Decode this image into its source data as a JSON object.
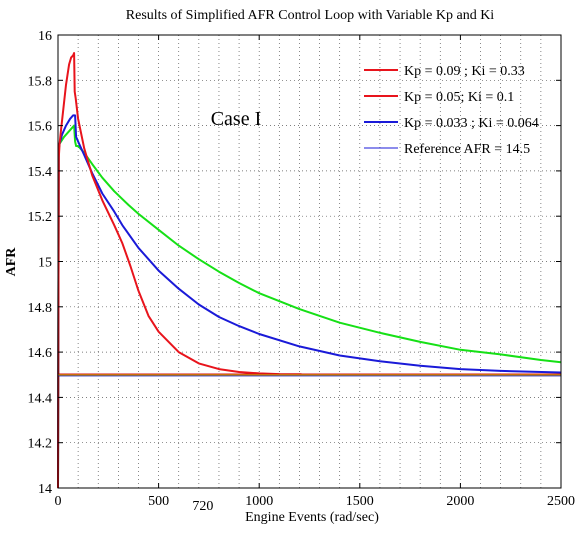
{
  "chart_data": {
    "type": "line",
    "title": "Results of Simplified AFR Control Loop with Variable Kp and Ki",
    "xlabel": "Engine Events (rad/sec)",
    "ylabel": "AFR",
    "xlim": [
      0,
      2500
    ],
    "ylim": [
      14,
      16
    ],
    "xticks": [
      0,
      500,
      1000,
      1500,
      2000,
      2500
    ],
    "xtick_labels": [
      "0",
      "500",
      "1000",
      "1500",
      "2000",
      "2500"
    ],
    "extra_xtick": {
      "value": 720,
      "label": "720"
    },
    "yticks": [
      14,
      14.2,
      14.4,
      14.6,
      14.8,
      15,
      15.2,
      15.4,
      15.6,
      15.8,
      16
    ],
    "ytick_labels": [
      "14",
      "14.2",
      "14.4",
      "14.6",
      "14.8",
      "15",
      "15.2",
      "15.4",
      "15.6",
      "15.8",
      "16"
    ],
    "grid": true,
    "legend_position": "top-right",
    "annotation": "Case I",
    "series": [
      {
        "name": "Kp = 0.09 ; Ki = 0.33",
        "color": "#e8141c",
        "x": [
          0,
          4,
          8,
          15,
          25,
          40,
          55,
          65,
          75,
          80,
          83,
          88,
          100,
          130,
          170,
          220,
          280,
          320,
          360,
          400,
          450,
          500,
          600,
          700,
          800,
          900,
          1000,
          1100,
          1200,
          1210
        ],
        "y": [
          14,
          15.46,
          15.52,
          15.58,
          15.66,
          15.78,
          15.87,
          15.9,
          15.91,
          15.92,
          15.75,
          15.72,
          15.63,
          15.5,
          15.38,
          15.27,
          15.16,
          15.08,
          14.98,
          14.87,
          14.76,
          14.69,
          14.6,
          14.55,
          14.525,
          14.512,
          14.506,
          14.503,
          14.502,
          14.502
        ]
      },
      {
        "name": "Kp = 0.05; Ki = 0.1",
        "color": "#e8141c",
        "x": [
          0,
          2500
        ],
        "y": [
          14.5,
          14.5
        ]
      },
      {
        "name": "Kp = 0.033 ; Ki = 0.064",
        "color": "#1a1ad8",
        "x": [
          0,
          4,
          8,
          20,
          40,
          60,
          75,
          85,
          90,
          95,
          100,
          130,
          170,
          220,
          280,
          320,
          400,
          500,
          600,
          700,
          800,
          900,
          1000,
          1200,
          1400,
          1600,
          1800,
          2000,
          2200,
          2500
        ],
        "y": [
          14,
          15.5,
          15.52,
          15.56,
          15.6,
          15.63,
          15.645,
          15.645,
          15.55,
          15.54,
          15.53,
          15.47,
          15.39,
          15.3,
          15.22,
          15.16,
          15.06,
          14.96,
          14.88,
          14.81,
          14.755,
          14.715,
          14.68,
          14.625,
          14.585,
          14.56,
          14.54,
          14.525,
          14.517,
          14.51
        ]
      },
      {
        "name": "Kp = 0.033 ; Ki = 0.064 (green)",
        "color": "#16e016",
        "x": [
          0,
          4,
          8,
          30,
          60,
          80,
          85,
          90,
          100,
          130,
          170,
          220,
          280,
          350,
          400,
          500,
          600,
          700,
          800,
          900,
          1000,
          1200,
          1400,
          1600,
          1800,
          2000,
          2200,
          2400,
          2500
        ],
        "y": [
          14,
          15.5,
          15.52,
          15.55,
          15.58,
          15.6,
          15.53,
          15.51,
          15.51,
          15.48,
          15.43,
          15.37,
          15.31,
          15.25,
          15.21,
          15.14,
          15.07,
          15.01,
          14.955,
          14.905,
          14.86,
          14.79,
          14.73,
          14.685,
          14.645,
          14.61,
          14.59,
          14.565,
          14.555
        ]
      },
      {
        "name": "Reference AFR = 14.5",
        "color": "#1a1ad8",
        "x": [
          0,
          2500
        ],
        "y": [
          14.5,
          14.5
        ]
      }
    ]
  },
  "legend_items": [
    {
      "label": "Kp = 0.09 ; Ki = 0.33",
      "color": "#e8141c",
      "width": 2
    },
    {
      "label": "Kp = 0.05; Ki = 0.1",
      "color": "#e8141c",
      "width": 2
    },
    {
      "label": "Kp = 0.033 ; Ki = 0.064",
      "color": "#1a1ad8",
      "width": 2
    },
    {
      "label": "Reference AFR = 14.5",
      "color": "#1a1ad8",
      "width": 1
    }
  ],
  "reference_line_colors": [
    "#d4a800",
    "#d01010",
    "#2020c0"
  ]
}
